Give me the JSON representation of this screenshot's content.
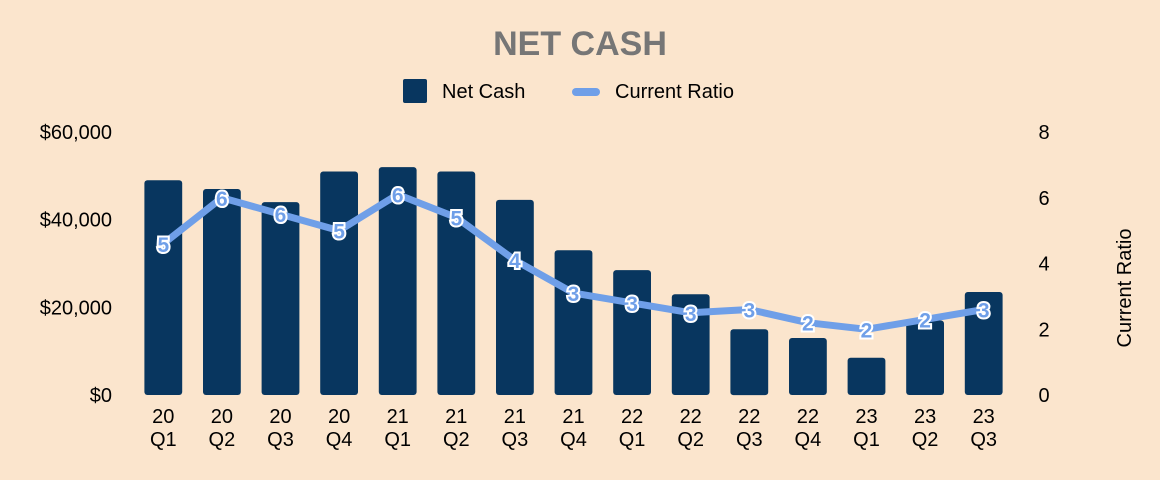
{
  "chart_data": {
    "type": "bar",
    "title": "NET CASH",
    "colors": {
      "background": "#fbe5cd",
      "bar": "#08365f",
      "line": "#6f9fe8",
      "title": "#767676"
    },
    "categories": [
      "20\nQ1",
      "20\nQ2",
      "20\nQ3",
      "20\nQ4",
      "21\nQ1",
      "21\nQ2",
      "21\nQ3",
      "21\nQ4",
      "22\nQ1",
      "22\nQ2",
      "22\nQ3",
      "22\nQ4",
      "23\nQ1",
      "23\nQ2",
      "23\nQ3"
    ],
    "series": [
      {
        "name": "Net Cash",
        "type": "bar",
        "axis": "left",
        "values": [
          49000,
          47000,
          44000,
          51000,
          52000,
          51000,
          44500,
          33000,
          28500,
          23000,
          15000,
          13000,
          8500,
          17000,
          23500
        ]
      },
      {
        "name": "Current Ratio",
        "type": "line",
        "axis": "right",
        "values": [
          4.6,
          6.0,
          5.5,
          5.0,
          6.1,
          5.4,
          4.1,
          3.1,
          2.8,
          2.5,
          2.6,
          2.2,
          2.0,
          2.3,
          2.6
        ],
        "labels": [
          "5",
          "6",
          "6",
          "5",
          "6",
          "5",
          "4",
          "3",
          "3",
          "3",
          "3",
          "2",
          "2",
          "2",
          "3"
        ]
      }
    ],
    "y_left": {
      "min": 0,
      "max": 60000,
      "ticks": [
        0,
        20000,
        40000,
        60000
      ],
      "tick_labels": [
        "$0",
        "$20,000",
        "$40,000",
        "$60,000"
      ]
    },
    "y_right": {
      "min": 0,
      "max": 8,
      "ticks": [
        0,
        2,
        4,
        6,
        8
      ],
      "tick_labels": [
        "0",
        "2",
        "4",
        "6",
        "8"
      ],
      "label": "Current Ratio"
    },
    "xlabel": "",
    "ylabel": "",
    "grid": false,
    "legend_position": "top-center"
  }
}
